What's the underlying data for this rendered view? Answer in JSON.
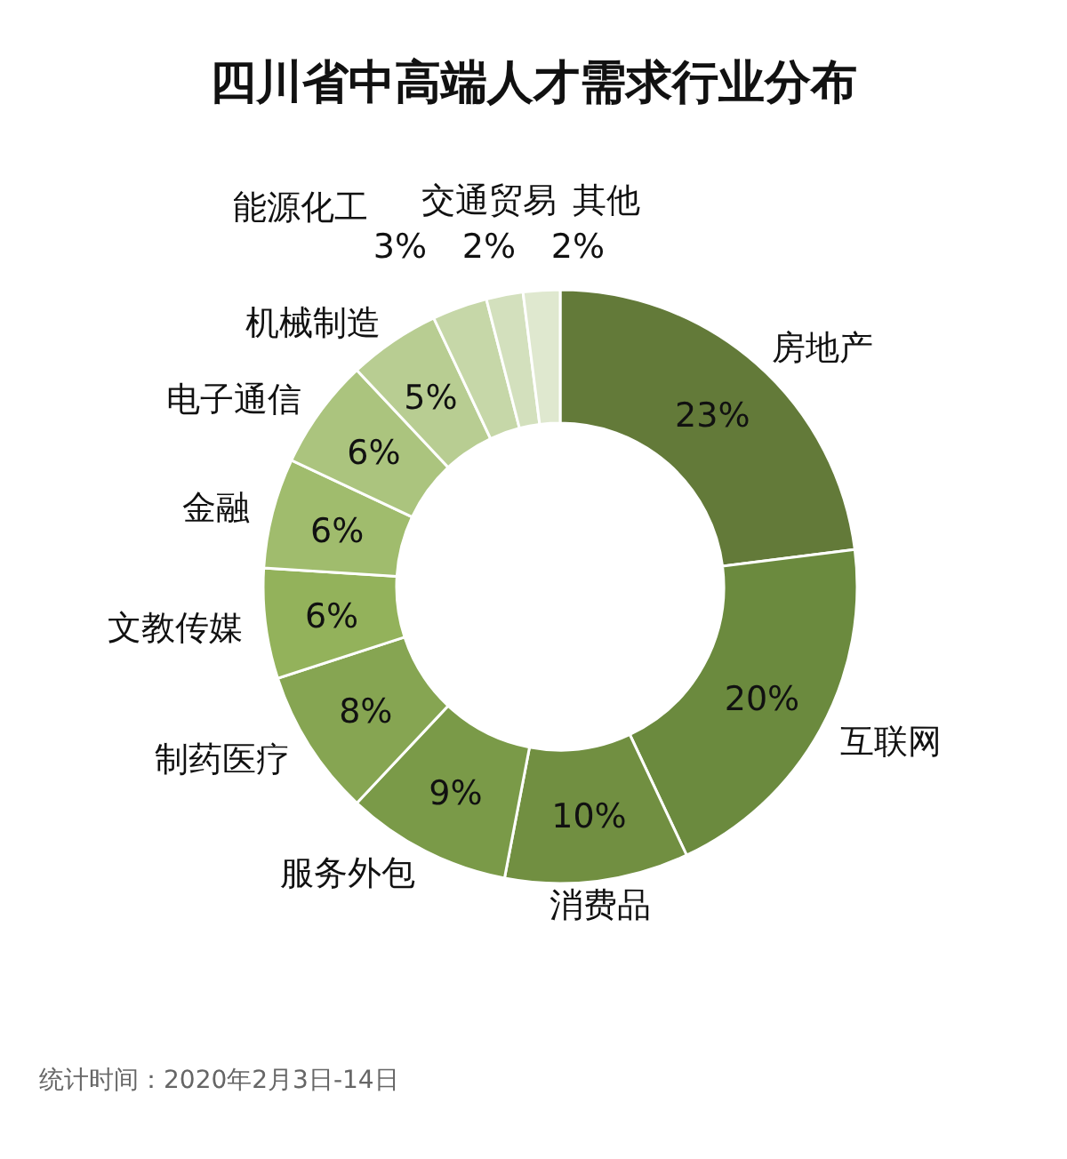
{
  "chart_data": {
    "type": "donut",
    "title": "四川省中高端人才需求行业分布",
    "categories": [
      "房地产",
      "互联网",
      "消费品",
      "服务外包",
      "制药医疗",
      "文教传媒",
      "金融",
      "电子通信",
      "机械制造",
      "能源化工",
      "交通贸易",
      "其他"
    ],
    "values": [
      23,
      20,
      10,
      9,
      8,
      6,
      6,
      6,
      5,
      3,
      2,
      2
    ],
    "colors": [
      "#637a39",
      "#6b8a3e",
      "#718f41",
      "#7a9a48",
      "#86a552",
      "#93b25b",
      "#a0bc6d",
      "#abc47e",
      "#b8cd92",
      "#c6d7a8",
      "#d3e0bd",
      "#dfe8cf"
    ],
    "value_labels": [
      "23%",
      "20%",
      "10%",
      "9%",
      "8%",
      "6%",
      "6%",
      "6%",
      "5%",
      "3%",
      "2%",
      "2%"
    ],
    "annotations": [
      "统计时间：2020年2月3日-14日"
    ]
  }
}
